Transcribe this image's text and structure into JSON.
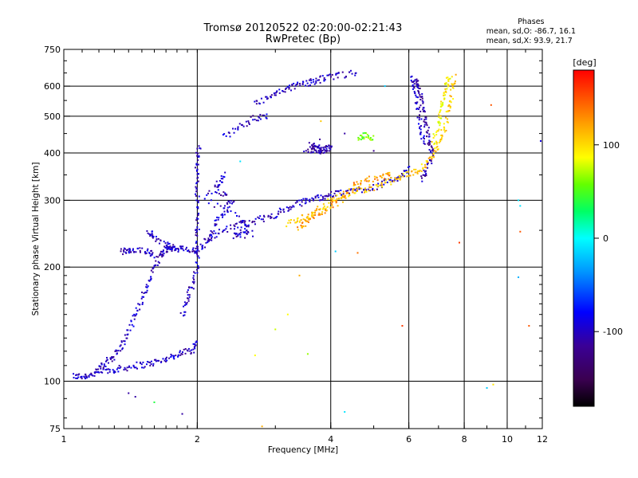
{
  "header": {
    "title_line1": "Tromsø 20120522 02:20:00-02:21:43",
    "title_line2": "RwPretec (Bp)"
  },
  "phases_box": {
    "heading": "Phases",
    "line_o": "mean, sd,O: -86.7, 16.1",
    "line_x": "mean, sd,X:  93.9, 21.7"
  },
  "colorbar": {
    "unit_label": "[deg]",
    "ticks": [
      "100",
      "0",
      "-100"
    ],
    "tick_values": [
      100,
      0,
      -100
    ],
    "range": [
      -180,
      180
    ]
  },
  "chart_data": {
    "type": "scatter",
    "xlabel": "Frequency [MHz]",
    "ylabel": "Stationary phase Virtual Height [km]",
    "x_scale": "log",
    "y_scale": "log",
    "xlim": [
      1,
      12
    ],
    "ylim": [
      75,
      750
    ],
    "x_ticks": [
      1,
      2,
      4,
      6,
      8,
      10,
      12
    ],
    "x_tick_labels": [
      "1",
      "2",
      "4",
      "6",
      "8",
      "10",
      "12"
    ],
    "y_ticks": [
      75,
      100,
      200,
      300,
      400,
      500,
      600,
      750
    ],
    "y_tick_labels": [
      "75",
      "100",
      "200",
      "300",
      "400",
      "500",
      "600",
      "750"
    ],
    "grid": true,
    "grid_x": [
      2,
      4,
      6,
      8,
      10
    ],
    "grid_y": [
      100,
      200,
      300,
      400,
      500,
      600
    ],
    "traces": [
      {
        "name_hint": "E/F1 low O",
        "phase": -100,
        "points": [
          [
            1.05,
            103
          ],
          [
            1.1,
            103
          ],
          [
            1.15,
            104
          ],
          [
            1.2,
            106
          ],
          [
            1.28,
            107
          ],
          [
            1.35,
            108
          ],
          [
            1.45,
            110
          ],
          [
            1.55,
            111
          ],
          [
            1.65,
            113
          ],
          [
            1.75,
            116
          ],
          [
            1.85,
            119
          ],
          [
            1.95,
            121
          ],
          [
            2.0,
            128
          ]
        ]
      },
      {
        "name_hint": "F1 O branch",
        "phase": -100,
        "points": [
          [
            1.2,
            108
          ],
          [
            1.25,
            112
          ],
          [
            1.3,
            117
          ],
          [
            1.35,
            124
          ],
          [
            1.4,
            135
          ],
          [
            1.45,
            150
          ],
          [
            1.5,
            165
          ],
          [
            1.55,
            180
          ],
          [
            1.6,
            200
          ],
          [
            1.65,
            215
          ],
          [
            1.7,
            222
          ],
          [
            1.75,
            225
          ]
        ]
      },
      {
        "name_hint": "F1 upper",
        "phase": -100,
        "points": [
          [
            1.55,
            248
          ],
          [
            1.6,
            240
          ],
          [
            1.7,
            228
          ],
          [
            1.75,
            225
          ],
          [
            1.8,
            224
          ],
          [
            1.9,
            222
          ],
          [
            2.0,
            220
          ]
        ]
      },
      {
        "name_hint": "small tail",
        "phase": -100,
        "points": [
          [
            1.35,
            220
          ],
          [
            1.4,
            220
          ],
          [
            1.45,
            220
          ],
          [
            1.55,
            221
          ],
          [
            1.6,
            215
          ]
        ]
      },
      {
        "name_hint": "F2 O vertical",
        "phase": -100,
        "points": [
          [
            1.85,
            150
          ],
          [
            1.9,
            165
          ],
          [
            1.95,
            180
          ],
          [
            2.0,
            200
          ],
          [
            2.0,
            230
          ],
          [
            2.0,
            260
          ],
          [
            2.0,
            300
          ],
          [
            2.0,
            340
          ],
          [
            2.0,
            380
          ],
          [
            2.02,
            420
          ]
        ]
      },
      {
        "name_hint": "F2 O main",
        "phase": -100,
        "points": [
          [
            2.0,
            220
          ],
          [
            2.1,
            235
          ],
          [
            2.2,
            245
          ],
          [
            2.4,
            255
          ],
          [
            2.6,
            262
          ],
          [
            2.8,
            268
          ],
          [
            3.0,
            275
          ],
          [
            3.2,
            285
          ],
          [
            3.4,
            295
          ],
          [
            3.6,
            302
          ],
          [
            3.8,
            306
          ],
          [
            4.0,
            310
          ],
          [
            4.3,
            315
          ],
          [
            4.6,
            320
          ],
          [
            5.0,
            325
          ],
          [
            5.4,
            335
          ],
          [
            5.8,
            350
          ],
          [
            6.0,
            362
          ]
        ]
      },
      {
        "name_hint": "spread F2",
        "phase": -100,
        "points": [
          [
            2.1,
            230
          ],
          [
            2.2,
            260
          ],
          [
            2.3,
            280
          ],
          [
            2.4,
            300
          ],
          [
            2.2,
            320
          ],
          [
            2.3,
            350
          ],
          [
            2.1,
            300
          ],
          [
            2.5,
            270
          ],
          [
            2.6,
            250
          ],
          [
            2.4,
            240
          ],
          [
            2.7,
            245
          ]
        ]
      },
      {
        "name_hint": "oblique",
        "phase": -100,
        "points": [
          [
            2.7,
            540
          ],
          [
            2.9,
            560
          ],
          [
            3.1,
            580
          ],
          [
            3.3,
            600
          ],
          [
            3.5,
            610
          ],
          [
            3.7,
            620
          ],
          [
            3.9,
            630
          ],
          [
            4.2,
            640
          ],
          [
            4.6,
            650
          ]
        ]
      },
      {
        "name_hint": "oblique lower",
        "phase": -100,
        "points": [
          [
            2.3,
            440
          ],
          [
            2.5,
            470
          ],
          [
            2.7,
            495
          ],
          [
            2.9,
            505
          ]
        ]
      },
      {
        "name_hint": "upper O cusp",
        "phase": -110,
        "points": [
          [
            6.2,
            620
          ],
          [
            6.3,
            600
          ],
          [
            6.4,
            560
          ],
          [
            6.5,
            500
          ],
          [
            6.6,
            460
          ],
          [
            6.7,
            420
          ],
          [
            6.8,
            400
          ],
          [
            6.6,
            360
          ],
          [
            6.4,
            340
          ]
        ]
      },
      {
        "name_hint": "cusp left strand",
        "phase": -100,
        "points": [
          [
            6.1,
            640
          ],
          [
            6.2,
            580
          ],
          [
            6.3,
            520
          ],
          [
            6.4,
            460
          ],
          [
            6.5,
            420
          ]
        ]
      },
      {
        "name_hint": "X trace",
        "phase": 110,
        "points": [
          [
            3.2,
            260
          ],
          [
            3.4,
            268
          ],
          [
            3.6,
            275
          ],
          [
            3.8,
            285
          ],
          [
            4.0,
            300
          ],
          [
            4.3,
            310
          ],
          [
            4.6,
            318
          ],
          [
            5.0,
            325
          ],
          [
            5.4,
            335
          ],
          [
            5.8,
            345
          ],
          [
            6.2,
            358
          ],
          [
            6.5,
            370
          ],
          [
            6.8,
            395
          ],
          [
            7.0,
            420
          ],
          [
            7.2,
            460
          ],
          [
            7.4,
            520
          ],
          [
            7.5,
            580
          ],
          [
            7.6,
            640
          ]
        ]
      },
      {
        "name_hint": "X secondary",
        "phase": 125,
        "points": [
          [
            3.4,
            255
          ],
          [
            3.5,
            262
          ],
          [
            3.7,
            272
          ],
          [
            4.0,
            290
          ],
          [
            4.2,
            300
          ],
          [
            4.5,
            330
          ],
          [
            4.8,
            340
          ],
          [
            5.2,
            345
          ],
          [
            5.5,
            350
          ]
        ]
      },
      {
        "name_hint": "X upper",
        "phase": 95,
        "points": [
          [
            6.8,
            420
          ],
          [
            7.0,
            470
          ],
          [
            7.1,
            520
          ],
          [
            7.2,
            560
          ],
          [
            7.3,
            600
          ],
          [
            7.4,
            640
          ]
        ]
      },
      {
        "name_hint": "cluster 3.5-4",
        "phase": -110,
        "points": [
          [
            3.6,
            420
          ],
          [
            3.7,
            410
          ],
          [
            3.8,
            405
          ],
          [
            3.9,
            410
          ],
          [
            4.0,
            415
          ],
          [
            3.5,
            400
          ],
          [
            3.8,
            430
          ]
        ]
      },
      {
        "name_hint": "scattered",
        "phase": 60,
        "points": [
          [
            4.6,
            440
          ],
          [
            4.8,
            445
          ],
          [
            5.0,
            438
          ]
        ]
      }
    ],
    "extra_points": [
      {
        "x": 1.4,
        "y": 93,
        "phase": -110
      },
      {
        "x": 1.45,
        "y": 91,
        "phase": -110
      },
      {
        "x": 1.6,
        "y": 88,
        "phase": 40
      },
      {
        "x": 1.85,
        "y": 82,
        "phase": -110
      },
      {
        "x": 2.8,
        "y": 76,
        "phase": 120
      },
      {
        "x": 2.7,
        "y": 117,
        "phase": 90
      },
      {
        "x": 3.55,
        "y": 118,
        "phase": 70
      },
      {
        "x": 4.3,
        "y": 83,
        "phase": -10
      },
      {
        "x": 5.8,
        "y": 140,
        "phase": 160
      },
      {
        "x": 7.8,
        "y": 232,
        "phase": 160
      },
      {
        "x": 9.2,
        "y": 535,
        "phase": 150
      },
      {
        "x": 9.3,
        "y": 98,
        "phase": 100
      },
      {
        "x": 10.6,
        "y": 300,
        "phase": -10
      },
      {
        "x": 10.7,
        "y": 290,
        "phase": -10
      },
      {
        "x": 10.7,
        "y": 248,
        "phase": 150
      },
      {
        "x": 10.6,
        "y": 188,
        "phase": -30
      },
      {
        "x": 11.2,
        "y": 140,
        "phase": 150
      },
      {
        "x": 11.9,
        "y": 430,
        "phase": -90
      },
      {
        "x": 9.0,
        "y": 96,
        "phase": -20
      },
      {
        "x": 5.0,
        "y": 405,
        "phase": -120
      },
      {
        "x": 4.3,
        "y": 450,
        "phase": -110
      },
      {
        "x": 2.5,
        "y": 380,
        "phase": -10
      },
      {
        "x": 4.6,
        "y": 218,
        "phase": 140
      },
      {
        "x": 3.4,
        "y": 190,
        "phase": 120
      },
      {
        "x": 3.2,
        "y": 150,
        "phase": 90
      },
      {
        "x": 3.0,
        "y": 137,
        "phase": 80
      },
      {
        "x": 3.8,
        "y": 485,
        "phase": 110
      },
      {
        "x": 4.1,
        "y": 220,
        "phase": -20
      },
      {
        "x": 5.3,
        "y": 600,
        "phase": -20
      }
    ]
  }
}
